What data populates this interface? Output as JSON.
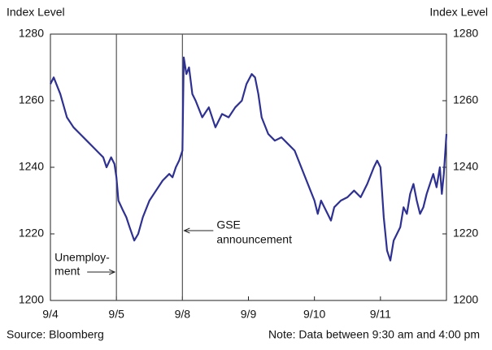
{
  "chart_data": {
    "type": "line",
    "y_label": "Index Level",
    "y2_label": "Index Level",
    "source": "Source: Bloomberg",
    "note": "Note: Data between 9:30 am and 4:00 pm",
    "xlim": [
      0,
      6
    ],
    "xticks": [
      {
        "value": 0,
        "label": "9/4"
      },
      {
        "value": 1,
        "label": "9/5"
      },
      {
        "value": 2,
        "label": "9/8"
      },
      {
        "value": 3,
        "label": "9/9"
      },
      {
        "value": 4,
        "label": "9/10"
      },
      {
        "value": 5,
        "label": "9/11"
      }
    ],
    "ylim": [
      1200,
      1280
    ],
    "yticks": [
      1200,
      1220,
      1240,
      1260,
      1280
    ],
    "y2lim": [
      1200,
      1280
    ],
    "y2ticks": [
      1200,
      1220,
      1240,
      1260,
      1280
    ],
    "events": [
      {
        "x": 1,
        "label": [
          "Unemploy-",
          "ment"
        ]
      },
      {
        "x": 2,
        "label": [
          "GSE",
          "announcement"
        ]
      }
    ],
    "x": [
      0,
      0.05,
      0.15,
      0.25,
      0.35,
      0.45,
      0.55,
      0.65,
      0.75,
      0.8,
      0.85,
      0.92,
      0.97,
      1.0,
      1.03,
      1.1,
      1.15,
      1.2,
      1.27,
      1.33,
      1.4,
      1.5,
      1.6,
      1.7,
      1.8,
      1.85,
      1.9,
      1.95,
      2.0,
      2.02,
      2.06,
      2.1,
      2.15,
      2.2,
      2.3,
      2.4,
      2.5,
      2.6,
      2.7,
      2.8,
      2.9,
      2.97,
      3.05,
      3.1,
      3.15,
      3.2,
      3.3,
      3.4,
      3.5,
      3.6,
      3.7,
      3.8,
      3.9,
      4.0,
      4.05,
      4.1,
      4.2,
      4.25,
      4.3,
      4.4,
      4.5,
      4.6,
      4.7,
      4.8,
      4.9,
      4.95,
      5.0,
      5.05,
      5.1,
      5.15,
      5.2,
      5.3,
      5.35,
      5.4,
      5.45,
      5.5,
      5.55,
      5.6,
      5.65,
      5.7,
      5.75,
      5.8,
      5.85,
      5.9,
      5.93,
      5.96,
      6.0
    ],
    "series": [
      {
        "color": "#2e3192",
        "values": [
          1265,
          1267,
          1262,
          1255,
          1252,
          1250,
          1248,
          1246,
          1244,
          1243,
          1240,
          1243,
          1241,
          1237,
          1230,
          1227,
          1225,
          1222,
          1218,
          1220,
          1225,
          1230,
          1233,
          1236,
          1238,
          1237,
          1240,
          1242,
          1245,
          1273,
          1268,
          1270,
          1262,
          1260,
          1255,
          1258,
          1252,
          1256,
          1255,
          1258,
          1260,
          1265,
          1268,
          1267,
          1262,
          1255,
          1250,
          1248,
          1249,
          1247,
          1245,
          1240,
          1235,
          1230,
          1226,
          1230,
          1226,
          1224,
          1228,
          1230,
          1231,
          1233,
          1231,
          1235,
          1240,
          1242,
          1240,
          1225,
          1215,
          1212,
          1218,
          1222,
          1228,
          1226,
          1232,
          1235,
          1230,
          1226,
          1228,
          1232,
          1235,
          1238,
          1234,
          1240,
          1232,
          1238,
          1250
        ]
      }
    ]
  }
}
